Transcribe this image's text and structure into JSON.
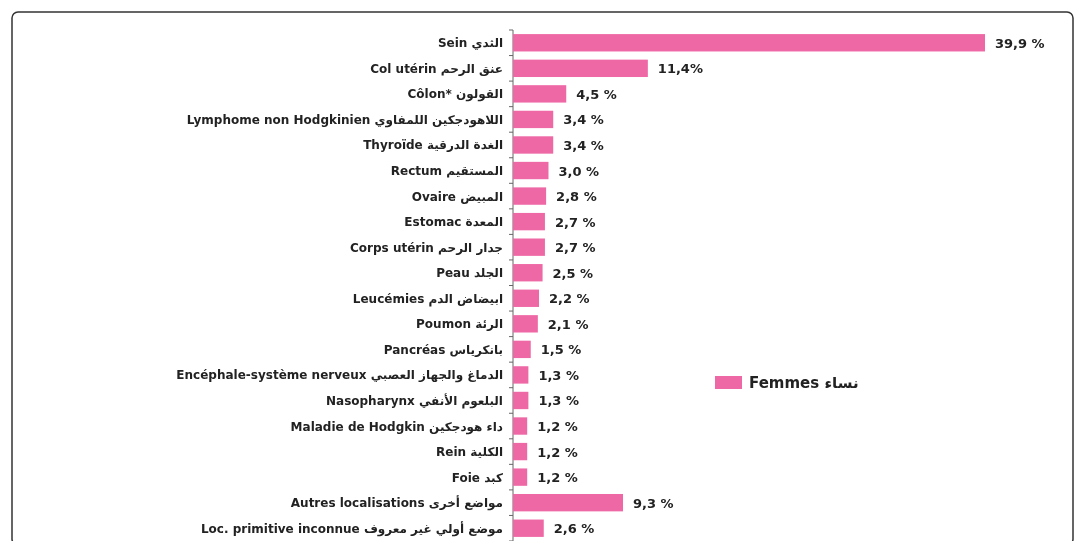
{
  "chart_data": {
    "type": "bar",
    "orientation": "horizontal",
    "categories": [
      "Sein  الثدي",
      "Col utérin  عنق الرحم",
      "Côlon*  القولون",
      "Lymphome non Hodgkinien  اللاهودجكين اللمفاوي",
      "Thyroïde  الغدة الدرقية",
      "Rectum  المستقيم",
      "Ovaire  المبيض",
      "Estomac  المعدة",
      "Corps utérin  جدار الرحم",
      "Peau  الجلد",
      "Leucémies  ابيضاض الدم",
      "Poumon  الرئة",
      "Pancréas  بانكرياس",
      "Encéphale-système nerveux  الدماغ والجهاز العصبي",
      "Nasopharynx  البلعوم الأنفي",
      "Maladie de Hodgkin  داء هودجكين",
      "Rein  الكلية",
      "Foie  كبد",
      "Autres localisations  مواضع أخرى",
      "Loc. primitive inconnue  موضع أولي غير معروف"
    ],
    "series": [
      {
        "name": "Femmes  نساء",
        "color": "#ef68a6",
        "values": [
          39.9,
          11.4,
          4.5,
          3.4,
          3.4,
          3.0,
          2.8,
          2.7,
          2.7,
          2.5,
          2.2,
          2.1,
          1.5,
          1.3,
          1.3,
          1.2,
          1.2,
          1.2,
          9.3,
          2.6
        ],
        "value_labels": [
          "39,9 %",
          "11,4%",
          "4,5 %",
          "3,4 %",
          "3,4 %",
          "3,0 %",
          "2,8 %",
          "2,7 %",
          "2,7 %",
          "2,5 %",
          "2,2 %",
          "2,1 %",
          "1,5 %",
          "1,3 %",
          "1,3 %",
          "1,2 %",
          "1,2 %",
          "1,2 %",
          "9,3 %",
          "2,6 %"
        ]
      }
    ],
    "legend": "right"
  }
}
